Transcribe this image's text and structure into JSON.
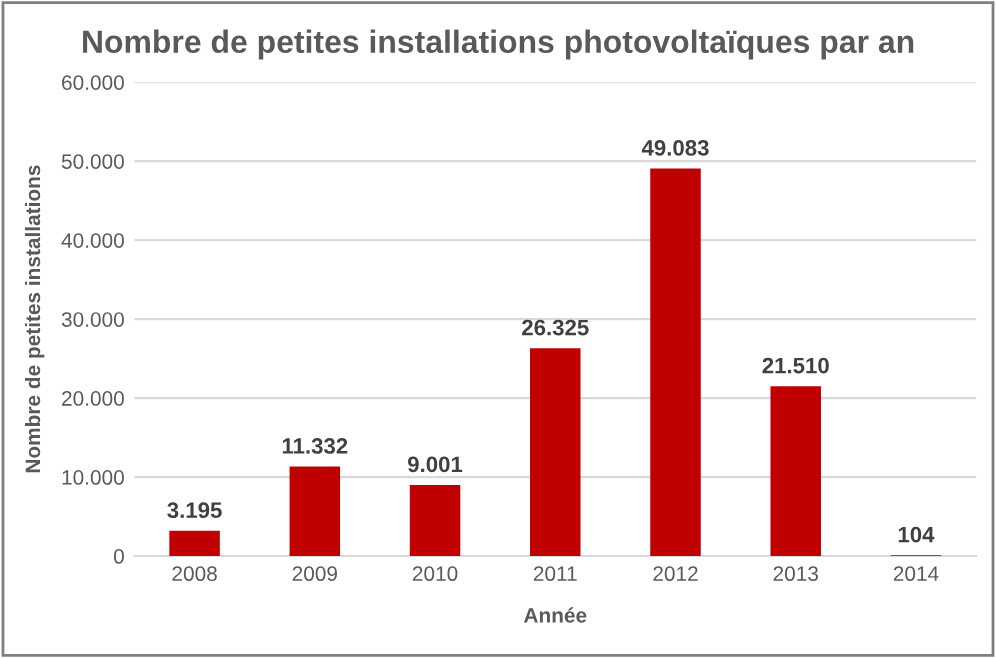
{
  "chart_data": {
    "type": "bar",
    "title": "Nombre de petites installations photovoltaïques par an",
    "xlabel": "Année",
    "ylabel": "Nombre de petites installations",
    "categories": [
      "2008",
      "2009",
      "2010",
      "2011",
      "2012",
      "2013",
      "2014"
    ],
    "values": [
      3195,
      11332,
      9001,
      26325,
      49083,
      21510,
      104
    ],
    "value_labels": [
      "3.195",
      "11.332",
      "9.001",
      "26.325",
      "49.083",
      "21.510",
      "104"
    ],
    "color": "#c00000",
    "ylim": [
      0,
      60000
    ],
    "yticks": [
      0,
      {
        "value": 10000,
        "label": "10.000"
      },
      {
        "value": 20000,
        "label": "20.000"
      },
      {
        "value": 30000,
        "label": "30.000"
      },
      {
        "value": 40000,
        "label": "40.000"
      },
      {
        "value": 50000,
        "label": "50.000"
      },
      {
        "value": 60000,
        "label": "60.000"
      }
    ],
    "grid": "y",
    "legend": false
  }
}
